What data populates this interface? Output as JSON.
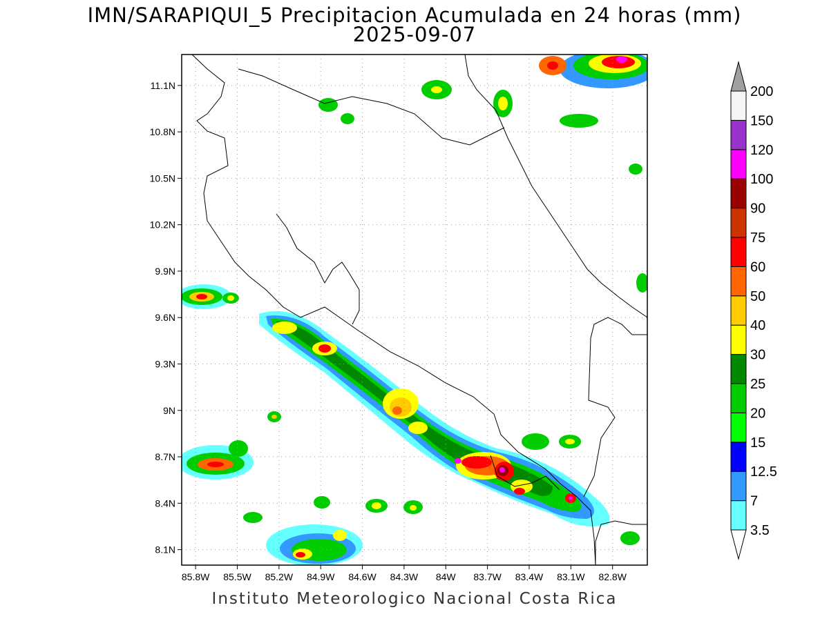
{
  "title": {
    "line1": "IMN/SARAPIQUI_5 Precipitacion Acumulada en 24 horas (mm)",
    "line2": "2025-09-07"
  },
  "footer": "Instituto Meteorologico Nacional Costa Rica",
  "axes": {
    "lat_ticks": [
      "11.1N",
      "10.8N",
      "10.5N",
      "10.2N",
      "9.9N",
      "9.6N",
      "9.3N",
      "9N",
      "8.7N",
      "8.4N",
      "8.1N"
    ],
    "lon_ticks": [
      "85.8W",
      "85.5W",
      "85.2W",
      "84.9W",
      "84.6W",
      "84.3W",
      "84W",
      "83.7W",
      "83.4W",
      "83.1W",
      "82.8W"
    ],
    "lat_values": [
      11.1,
      10.8,
      10.5,
      10.2,
      9.9,
      9.6,
      9.3,
      9.0,
      8.7,
      8.4,
      8.1
    ],
    "lon_values": [
      -85.8,
      -85.5,
      -85.2,
      -84.9,
      -84.6,
      -84.3,
      -84.0,
      -83.7,
      -83.4,
      -83.1,
      -82.8
    ],
    "lat_range": [
      8.0,
      11.3
    ],
    "lon_range": [
      -85.9,
      -82.55
    ],
    "grid": "dotted"
  },
  "colorbar": {
    "levels": [
      "3.5",
      "7",
      "12.5",
      "15",
      "20",
      "25",
      "30",
      "40",
      "50",
      "60",
      "75",
      "90",
      "100",
      "120",
      "150",
      "200"
    ],
    "colors": [
      "#66ffff",
      "#3399ff",
      "#0000ff",
      "#00ff00",
      "#00cc00",
      "#008800",
      "#ffff00",
      "#ffcc00",
      "#ff6600",
      "#ff0000",
      "#cc3300",
      "#990000",
      "#ff00ff",
      "#9933cc",
      "#f5f5f5",
      "#a0a0a0"
    ],
    "extend": "both"
  }
}
